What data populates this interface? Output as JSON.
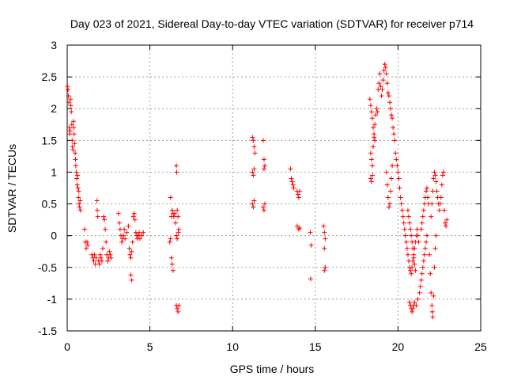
{
  "chart_data": {
    "type": "scatter",
    "title": "Day 023 of 2021, Sidereal Day-to-day VTEC variation (SDTVAR) for receiver p714",
    "xlabel": "GPS time / hours",
    "ylabel": "SDTVAR / TECUs",
    "xlim": [
      0,
      25
    ],
    "ylim": [
      -1.5,
      3
    ],
    "x_ticks": [
      0,
      5,
      10,
      15,
      20,
      25
    ],
    "x_tick_labels": [
      "0",
      "5",
      "10",
      "15",
      "20",
      "25"
    ],
    "y_ticks": [
      -1.5,
      -1,
      -0.5,
      0,
      0.5,
      1,
      1.5,
      2,
      2.5,
      3
    ],
    "y_tick_labels": [
      "-1.5",
      "-1",
      "-0.5",
      "0",
      "0.5",
      "1",
      "1.5",
      "2",
      "2.5",
      "3"
    ],
    "grid": true,
    "marker": "+",
    "marker_color": "#ff0000",
    "series": [
      {
        "name": "SDTVAR",
        "points": [
          [
            0.02,
            2.35
          ],
          [
            0.05,
            2.3
          ],
          [
            0.08,
            2.2
          ],
          [
            0.1,
            2.1
          ],
          [
            0.12,
            1.7
          ],
          [
            0.15,
            1.6
          ],
          [
            0.18,
            1.65
          ],
          [
            0.2,
            2.15
          ],
          [
            0.22,
            2.05
          ],
          [
            0.25,
            1.95
          ],
          [
            0.28,
            1.75
          ],
          [
            0.3,
            1.5
          ],
          [
            0.32,
            1.4
          ],
          [
            0.35,
            1.35
          ],
          [
            0.38,
            1.8
          ],
          [
            0.4,
            1.7
          ],
          [
            0.42,
            1.6
          ],
          [
            0.45,
            1.45
          ],
          [
            0.48,
            1.3
          ],
          [
            0.5,
            1.2
          ],
          [
            0.52,
            1.1
          ],
          [
            0.55,
            1.0
          ],
          [
            0.58,
            0.9
          ],
          [
            0.6,
            0.8
          ],
          [
            0.62,
            0.95
          ],
          [
            0.65,
            0.75
          ],
          [
            0.68,
            0.6
          ],
          [
            0.7,
            0.7
          ],
          [
            0.72,
            0.5
          ],
          [
            0.75,
            0.45
          ],
          [
            0.78,
            0.55
          ],
          [
            0.8,
            0.4
          ],
          [
            1.05,
            0.1
          ],
          [
            1.1,
            -0.1
          ],
          [
            1.15,
            -0.2
          ],
          [
            1.2,
            -0.1
          ],
          [
            1.25,
            -0.15
          ],
          [
            1.5,
            -0.3
          ],
          [
            1.55,
            -0.35
          ],
          [
            1.6,
            -0.4
          ],
          [
            1.65,
            -0.3
          ],
          [
            1.7,
            -0.45
          ],
          [
            1.75,
            -0.35
          ],
          [
            1.8,
            0.55
          ],
          [
            1.82,
            0.4
          ],
          [
            1.85,
            0.3
          ],
          [
            1.9,
            -0.4
          ],
          [
            1.95,
            -0.45
          ],
          [
            2.0,
            -0.3
          ],
          [
            2.05,
            -0.35
          ],
          [
            2.1,
            -0.4
          ],
          [
            2.15,
            -0.2
          ],
          [
            2.2,
            0.3
          ],
          [
            2.25,
            0.25
          ],
          [
            2.3,
            0.1
          ],
          [
            2.35,
            -0.1
          ],
          [
            2.4,
            -0.3
          ],
          [
            2.45,
            -0.4
          ],
          [
            2.5,
            -0.35
          ],
          [
            2.55,
            -0.25
          ],
          [
            2.6,
            -0.3
          ],
          [
            2.65,
            -0.35
          ],
          [
            3.1,
            0.35
          ],
          [
            3.15,
            0.2
          ],
          [
            3.2,
            0.1
          ],
          [
            3.25,
            0.0
          ],
          [
            3.3,
            -0.1
          ],
          [
            3.35,
            -0.05
          ],
          [
            3.4,
            0.0
          ],
          [
            3.45,
            0.1
          ],
          [
            3.5,
            -0.05
          ],
          [
            3.6,
            0.05
          ],
          [
            3.7,
            0.15
          ],
          [
            3.75,
            -0.2
          ],
          [
            3.8,
            -0.3
          ],
          [
            3.85,
            -0.35
          ],
          [
            3.9,
            -0.25
          ],
          [
            3.95,
            -0.1
          ],
          [
            4.0,
            0.3
          ],
          [
            4.05,
            0.35
          ],
          [
            4.1,
            0.25
          ],
          [
            4.15,
            0.05
          ],
          [
            4.2,
            0.0
          ],
          [
            4.25,
            -0.05
          ],
          [
            4.3,
            0.0
          ],
          [
            4.35,
            0.05
          ],
          [
            4.4,
            -0.05
          ],
          [
            4.5,
            0.0
          ],
          [
            4.6,
            0.05
          ],
          [
            3.85,
            -0.62
          ],
          [
            3.9,
            -0.7
          ],
          [
            6.2,
            -0.1
          ],
          [
            6.25,
            -0.05
          ],
          [
            6.3,
            0.3
          ],
          [
            6.35,
            0.4
          ],
          [
            6.4,
            0.35
          ],
          [
            6.45,
            0.3
          ],
          [
            6.3,
            -0.35
          ],
          [
            6.35,
            -0.45
          ],
          [
            6.4,
            -0.55
          ],
          [
            6.25,
            0.6
          ],
          [
            6.5,
            0.35
          ],
          [
            6.55,
            0.2
          ],
          [
            6.6,
            0.0
          ],
          [
            6.65,
            -0.05
          ],
          [
            6.6,
            1.1
          ],
          [
            6.62,
            1.0
          ],
          [
            6.65,
            0.4
          ],
          [
            6.7,
            0.3
          ],
          [
            6.72,
            0.05
          ],
          [
            6.75,
            0.1
          ],
          [
            6.6,
            -1.1
          ],
          [
            6.65,
            -1.15
          ],
          [
            6.7,
            -1.2
          ],
          [
            6.75,
            -1.1
          ],
          [
            11.2,
            1.55
          ],
          [
            11.25,
            1.5
          ],
          [
            11.3,
            1.4
          ],
          [
            11.35,
            1.3
          ],
          [
            11.2,
            1.0
          ],
          [
            11.25,
            0.95
          ],
          [
            11.3,
            1.05
          ],
          [
            11.2,
            0.5
          ],
          [
            11.25,
            0.45
          ],
          [
            11.3,
            0.55
          ],
          [
            11.85,
            1.5
          ],
          [
            11.9,
            1.2
          ],
          [
            11.95,
            1.1
          ],
          [
            11.9,
            1.05
          ],
          [
            11.85,
            0.45
          ],
          [
            11.9,
            0.4
          ],
          [
            11.95,
            0.5
          ],
          [
            13.5,
            1.05
          ],
          [
            13.55,
            0.9
          ],
          [
            13.6,
            0.85
          ],
          [
            13.65,
            0.8
          ],
          [
            13.7,
            0.75
          ],
          [
            13.9,
            0.7
          ],
          [
            13.95,
            0.65
          ],
          [
            14.0,
            0.6
          ],
          [
            14.05,
            0.7
          ],
          [
            13.9,
            0.15
          ],
          [
            14.0,
            0.1
          ],
          [
            14.05,
            0.12
          ],
          [
            14.7,
            0.05
          ],
          [
            14.75,
            -0.15
          ],
          [
            14.72,
            -0.68
          ],
          [
            15.5,
            0.15
          ],
          [
            15.55,
            0.05
          ],
          [
            15.6,
            -0.05
          ],
          [
            15.55,
            -0.2
          ],
          [
            15.6,
            -0.5
          ],
          [
            15.55,
            -0.55
          ],
          [
            18.3,
            2.15
          ],
          [
            18.35,
            2.05
          ],
          [
            18.4,
            1.95
          ],
          [
            18.45,
            1.85
          ],
          [
            18.5,
            1.7
          ],
          [
            18.55,
            1.6
          ],
          [
            18.6,
            1.5
          ],
          [
            18.35,
            1.3
          ],
          [
            18.4,
            1.2
          ],
          [
            18.45,
            1.1
          ],
          [
            18.5,
            1.4
          ],
          [
            18.55,
            1.55
          ],
          [
            18.6,
            1.75
          ],
          [
            18.65,
            1.9
          ],
          [
            18.7,
            2.0
          ],
          [
            18.75,
            1.95
          ],
          [
            18.35,
            0.9
          ],
          [
            18.4,
            0.85
          ],
          [
            18.45,
            0.95
          ],
          [
            18.8,
            2.3
          ],
          [
            18.85,
            2.4
          ],
          [
            18.9,
            2.55
          ],
          [
            18.95,
            2.35
          ],
          [
            19.0,
            2.2
          ],
          [
            19.05,
            2.3
          ],
          [
            19.1,
            2.45
          ],
          [
            19.15,
            2.6
          ],
          [
            19.2,
            2.7
          ],
          [
            19.25,
            2.65
          ],
          [
            19.3,
            2.55
          ],
          [
            19.35,
            2.4
          ],
          [
            19.4,
            2.25
          ],
          [
            19.45,
            2.2
          ],
          [
            19.5,
            2.1
          ],
          [
            19.55,
            2.0
          ],
          [
            19.6,
            1.9
          ],
          [
            19.65,
            1.85
          ],
          [
            19.7,
            1.7
          ],
          [
            19.75,
            1.6
          ],
          [
            19.3,
            1.0
          ],
          [
            19.35,
            0.8
          ],
          [
            19.4,
            0.6
          ],
          [
            19.45,
            0.45
          ],
          [
            19.5,
            0.5
          ],
          [
            19.55,
            0.7
          ],
          [
            19.6,
            0.9
          ],
          [
            19.65,
            1.1
          ],
          [
            19.8,
            1.5
          ],
          [
            19.85,
            1.3
          ],
          [
            19.9,
            1.2
          ],
          [
            19.95,
            1.1
          ],
          [
            20.0,
            1.0
          ],
          [
            20.05,
            0.9
          ],
          [
            20.1,
            0.75
          ],
          [
            20.15,
            0.6
          ],
          [
            20.2,
            0.5
          ],
          [
            20.25,
            0.4
          ],
          [
            20.3,
            0.3
          ],
          [
            20.35,
            0.2
          ],
          [
            20.4,
            0.1
          ],
          [
            20.45,
            0.0
          ],
          [
            20.5,
            -0.1
          ],
          [
            20.55,
            -0.2
          ],
          [
            20.6,
            -0.3
          ],
          [
            20.65,
            -0.4
          ],
          [
            20.7,
            -0.5
          ],
          [
            20.75,
            -0.55
          ],
          [
            20.8,
            -0.6
          ],
          [
            20.85,
            -0.5
          ],
          [
            20.9,
            -0.4
          ],
          [
            20.95,
            -0.3
          ],
          [
            21.0,
            -0.2
          ],
          [
            21.05,
            -0.1
          ],
          [
            21.1,
            0.0
          ],
          [
            21.15,
            0.1
          ],
          [
            21.2,
            0.0
          ],
          [
            21.25,
            -0.1
          ],
          [
            20.6,
            0.4
          ],
          [
            20.65,
            0.3
          ],
          [
            20.7,
            0.2
          ],
          [
            20.75,
            0.1
          ],
          [
            20.8,
            0.0
          ],
          [
            20.85,
            -0.1
          ],
          [
            20.9,
            -0.2
          ],
          [
            20.95,
            -0.35
          ],
          [
            21.0,
            -0.45
          ],
          [
            21.05,
            -0.55
          ],
          [
            20.7,
            -1.05
          ],
          [
            20.75,
            -1.1
          ],
          [
            20.8,
            -1.15
          ],
          [
            20.85,
            -1.2
          ],
          [
            20.9,
            -1.15
          ],
          [
            20.95,
            -1.1
          ],
          [
            21.0,
            -1.05
          ],
          [
            21.1,
            -1.1
          ],
          [
            21.2,
            -1.0
          ],
          [
            21.3,
            -0.9
          ],
          [
            21.35,
            -0.8
          ],
          [
            21.4,
            -0.7
          ],
          [
            21.45,
            -0.6
          ],
          [
            21.5,
            -0.5
          ],
          [
            21.55,
            -0.4
          ],
          [
            21.6,
            -0.3
          ],
          [
            21.65,
            -0.2
          ],
          [
            21.7,
            -0.1
          ],
          [
            21.75,
            0.0
          ],
          [
            21.4,
            0.1
          ],
          [
            21.45,
            0.2
          ],
          [
            21.5,
            0.3
          ],
          [
            21.55,
            0.4
          ],
          [
            21.6,
            0.5
          ],
          [
            21.65,
            0.6
          ],
          [
            21.7,
            0.7
          ],
          [
            21.75,
            0.75
          ],
          [
            21.8,
            0.6
          ],
          [
            21.85,
            0.5
          ],
          [
            21.9,
            -0.3
          ],
          [
            21.95,
            -0.6
          ],
          [
            22.0,
            -0.9
          ],
          [
            22.05,
            -1.1
          ],
          [
            22.08,
            -1.2
          ],
          [
            22.1,
            -1.28
          ],
          [
            22.15,
            -0.95
          ],
          [
            22.2,
            -0.5
          ],
          [
            22.25,
            -0.2
          ],
          [
            22.3,
            0.0
          ],
          [
            22.0,
            0.3
          ],
          [
            22.05,
            0.5
          ],
          [
            22.1,
            0.7
          ],
          [
            22.15,
            0.9
          ],
          [
            22.2,
            1.0
          ],
          [
            22.25,
            0.95
          ],
          [
            22.3,
            0.85
          ],
          [
            22.35,
            0.7
          ],
          [
            22.4,
            0.6
          ],
          [
            22.45,
            0.5
          ],
          [
            22.5,
            0.4
          ],
          [
            22.55,
            0.5
          ],
          [
            22.6,
            0.6
          ],
          [
            22.65,
            0.8
          ],
          [
            22.7,
            0.95
          ],
          [
            22.75,
            1.0
          ],
          [
            22.8,
            0.4
          ],
          [
            22.85,
            0.2
          ],
          [
            22.9,
            0.15
          ],
          [
            22.95,
            0.25
          ]
        ]
      }
    ]
  }
}
